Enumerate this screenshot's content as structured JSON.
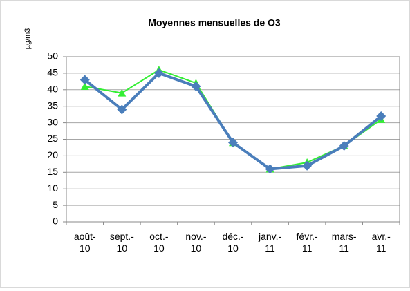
{
  "chart_data": {
    "type": "line",
    "title": "Moyennes mensuelles de O3",
    "y_label": "µg/m3",
    "categories": [
      "août-10",
      "sept.-10",
      "oct.-10",
      "nov.-10",
      "déc.-10",
      "janv.-11",
      "févr.-11",
      "mars-11",
      "avr.-11"
    ],
    "series": [
      {
        "color": "#33ee33",
        "marker": "triangle",
        "values": [
          41,
          39,
          46,
          42,
          24,
          16,
          18,
          23,
          31
        ]
      },
      {
        "color": "#4a7ebb",
        "marker": "diamond",
        "values": [
          43,
          34,
          45,
          41,
          24,
          16,
          17,
          23,
          32
        ]
      }
    ],
    "ylim": [
      0,
      50
    ],
    "yticks": [
      0,
      5,
      10,
      15,
      20,
      25,
      30,
      35,
      40,
      45,
      50
    ],
    "grid": true
  }
}
